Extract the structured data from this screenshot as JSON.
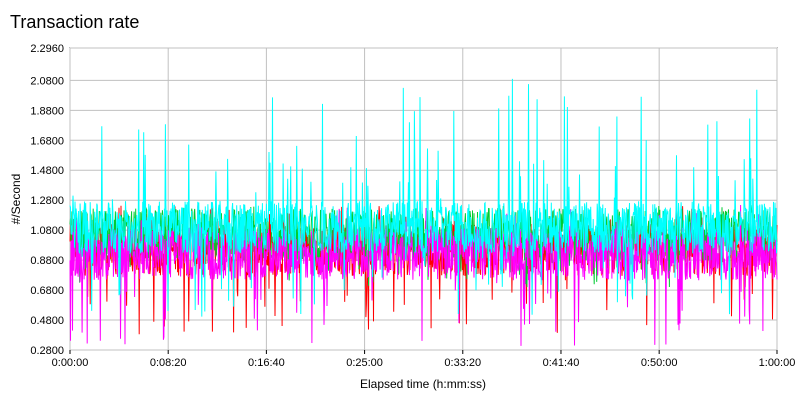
{
  "chart_data": {
    "type": "line",
    "title": "Transaction rate",
    "xlabel": "Elapsed time (h:mm:ss)",
    "ylabel": "#/Second",
    "ylim": [
      0.28,
      2.296
    ],
    "xlim_seconds": [
      0,
      3600
    ],
    "y_ticks": [
      "0.2800",
      "0.4800",
      "0.6800",
      "0.8800",
      "1.0800",
      "1.2800",
      "1.4800",
      "1.6800",
      "1.8800",
      "2.0800",
      "2.2960"
    ],
    "y_tick_values": [
      0.28,
      0.48,
      0.68,
      0.88,
      1.08,
      1.28,
      1.48,
      1.68,
      1.88,
      2.08,
      2.296
    ],
    "x_ticks": [
      "0:00:00",
      "0:08:20",
      "0:16:40",
      "0:25:00",
      "0:33:20",
      "0:41:40",
      "0:50:00",
      "1:00:00"
    ],
    "x_tick_values_seconds": [
      0,
      500,
      1000,
      1500,
      2000,
      2500,
      3000,
      3600
    ],
    "grid": true,
    "legend": "none",
    "series": [
      {
        "color": "#ff0000",
        "baseline": 0.95,
        "min": 0.38,
        "max": 1.25
      },
      {
        "color": "#00cc33",
        "baseline": 1.05,
        "min": 0.7,
        "max": 1.25
      },
      {
        "color": "#ff00ff",
        "baseline": 0.92,
        "min": 0.3,
        "max": 1.25
      },
      {
        "color": "#00ffff",
        "baseline": 1.1,
        "min": 0.48,
        "max": 2.1
      }
    ]
  }
}
